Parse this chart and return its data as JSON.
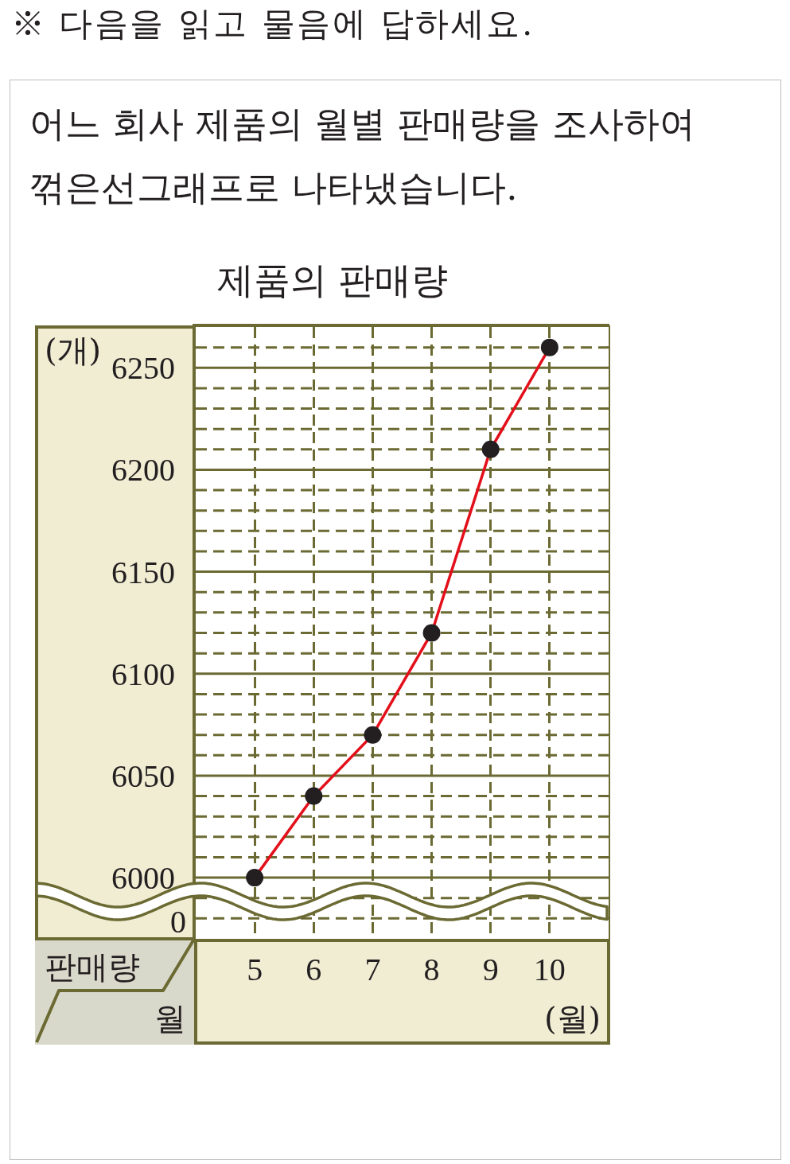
{
  "chart_data": {
    "type": "line",
    "title": "제품의 판매량",
    "xlabel": "(월)",
    "ylabel": "(개)",
    "annotations": [
      "※ 다음을 읽고 물음에 답하세요.",
      "어느 회사 제품의 월별 판매량을 조사하여 꺾은선그래프로 나타냈습니다.",
      "판매량",
      "월",
      "0"
    ],
    "categories": [
      "5",
      "6",
      "7",
      "8",
      "9",
      "10"
    ],
    "series": [
      {
        "color": "#e3101b",
        "values": [
          6000,
          6040,
          6070,
          6120,
          6210,
          6260
        ]
      }
    ],
    "ylim": [
      5970,
      6270
    ],
    "yticks": [
      {
        "value": 5980,
        "label": null
      },
      {
        "value": 5990,
        "label": null
      },
      6000,
      {
        "value": 6010,
        "label": null
      },
      {
        "value": 6020,
        "label": null
      },
      {
        "value": 6030,
        "label": null
      },
      {
        "value": 6040,
        "label": null
      },
      6050,
      {
        "value": 6060,
        "label": null
      },
      {
        "value": 6070,
        "label": null
      },
      {
        "value": 6080,
        "label": null
      },
      {
        "value": 6090,
        "label": null
      },
      6100,
      {
        "value": 6110,
        "label": null
      },
      {
        "value": 6120,
        "label": null
      },
      {
        "value": 6130,
        "label": null
      },
      {
        "value": 6140,
        "label": null
      },
      6150,
      {
        "value": 6160,
        "label": null
      },
      {
        "value": 6170,
        "label": null
      },
      {
        "value": 6180,
        "label": null
      },
      {
        "value": 6190,
        "label": null
      },
      6200,
      {
        "value": 6210,
        "label": null
      },
      {
        "value": 6220,
        "label": null
      },
      {
        "value": 6230,
        "label": null
      },
      {
        "value": 6240,
        "label": null
      },
      6250,
      {
        "value": 6260,
        "label": null
      }
    ],
    "grid": true,
    "marker": "circle"
  }
}
